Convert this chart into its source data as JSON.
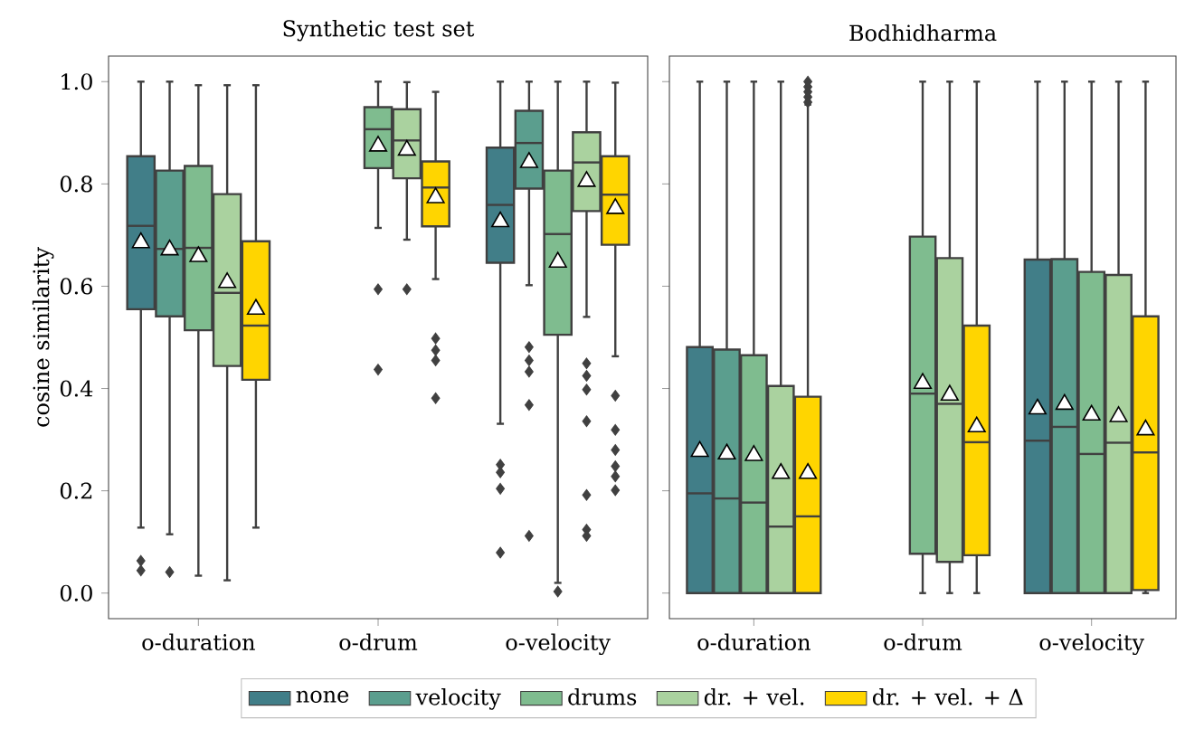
{
  "chart_data": [
    {
      "type": "box",
      "title": "Synthetic test set",
      "ylabel": "cosine similarity",
      "categories": [
        "o-duration",
        "o-drum",
        "o-velocity"
      ],
      "ylim": [
        -0.05,
        1.05
      ],
      "yticks": [
        {
          "value": 0,
          "label": "0.0"
        },
        {
          "value": 0.2,
          "label": "0.2"
        },
        {
          "value": 0.4,
          "label": "0.4"
        },
        {
          "value": 0.6,
          "label": "0.6"
        },
        {
          "value": 0.8,
          "label": "0.8"
        },
        {
          "value": 1.0,
          "label": "1.0"
        }
      ],
      "legend": "bottom",
      "series": [
        {
          "name": "none",
          "color": "#417e88",
          "boxes": [
            {
              "low": 0.128,
              "q1": 0.555,
              "median": 0.718,
              "q3": 0.854,
              "high": 1.0,
              "mean": 0.685,
              "outliers": [
                0.063,
                0.044
              ]
            },
            null,
            {
              "low": 0.331,
              "q1": 0.646,
              "median": 0.759,
              "q3": 0.871,
              "high": 1.0,
              "mean": 0.726,
              "outliers": [
                0.251,
                0.236,
                0.204,
                0.079
              ]
            }
          ]
        },
        {
          "name": "velocity",
          "color": "#5b9e8e",
          "boxes": [
            {
              "low": 0.115,
              "q1": 0.541,
              "median": 0.673,
              "q3": 0.826,
              "high": 1.0,
              "mean": 0.671,
              "outliers": [
                0.041
              ]
            },
            null,
            {
              "low": 0.602,
              "q1": 0.791,
              "median": 0.88,
              "q3": 0.943,
              "high": 1.0,
              "mean": 0.842,
              "outliers": [
                0.481,
                0.455,
                0.433,
                0.368,
                0.112
              ]
            }
          ]
        },
        {
          "name": "drums",
          "color": "#7fbc8f",
          "boxes": [
            {
              "low": 0.034,
              "q1": 0.514,
              "median": 0.675,
              "q3": 0.835,
              "high": 0.993,
              "mean": 0.658
            },
            {
              "low": 0.714,
              "q1": 0.831,
              "median": 0.907,
              "q3": 0.95,
              "high": 1.0,
              "mean": 0.874,
              "outliers": [
                0.594,
                0.437
              ]
            },
            {
              "low": 0.02,
              "q1": 0.505,
              "median": 0.702,
              "q3": 0.826,
              "high": 1.0,
              "mean": 0.647,
              "outliers": [
                0.003
              ]
            }
          ]
        },
        {
          "name": "dr. + vel.",
          "color": "#aad29f",
          "boxes": [
            {
              "low": 0.025,
              "q1": 0.444,
              "median": 0.587,
              "q3": 0.78,
              "high": 0.993,
              "mean": 0.607
            },
            {
              "low": 0.691,
              "q1": 0.811,
              "median": 0.885,
              "q3": 0.946,
              "high": 0.999,
              "mean": 0.866,
              "outliers": [
                0.594
              ]
            },
            {
              "low": 0.54,
              "q1": 0.747,
              "median": 0.842,
              "q3": 0.901,
              "high": 1.0,
              "mean": 0.805,
              "outliers": [
                0.449,
                0.425,
                0.398,
                0.336,
                0.192,
                0.124,
                0.112
              ]
            }
          ]
        },
        {
          "name": "dr. + vel. + Δ",
          "color": "#ffd500",
          "boxes": [
            {
              "low": 0.128,
              "q1": 0.417,
              "median": 0.523,
              "q3": 0.688,
              "high": 0.993,
              "mean": 0.555
            },
            {
              "low": 0.614,
              "q1": 0.717,
              "median": 0.793,
              "q3": 0.844,
              "high": 0.98,
              "mean": 0.773,
              "outliers": [
                0.498,
                0.475,
                0.455,
                0.381
              ]
            },
            {
              "low": 0.463,
              "q1": 0.681,
              "median": 0.779,
              "q3": 0.854,
              "high": 0.998,
              "mean": 0.752,
              "outliers": [
                0.386,
                0.319,
                0.28,
                0.248,
                0.228,
                0.201
              ]
            }
          ]
        }
      ]
    },
    {
      "type": "box",
      "title": "Bodhidharma",
      "categories": [
        "o-duration",
        "o-drum",
        "o-velocity"
      ],
      "ylim": [
        -0.05,
        1.05
      ],
      "yticks": [
        {
          "value": 0,
          "label": null
        },
        {
          "value": 0.2,
          "label": null
        },
        {
          "value": 0.4,
          "label": null
        },
        {
          "value": 0.6,
          "label": null
        },
        {
          "value": 0.8,
          "label": null
        },
        {
          "value": 1.0,
          "label": null
        }
      ],
      "tick_labels": "x",
      "series": [
        {
          "color": "#417e88",
          "boxes": [
            {
              "low": 0.0,
              "q1": 0.0,
              "median": 0.195,
              "q3": 0.481,
              "high": 1.0,
              "mean": 0.277
            },
            null,
            {
              "low": 0.0,
              "q1": 0.0,
              "median": 0.298,
              "q3": 0.652,
              "high": 1.0,
              "mean": 0.36
            }
          ]
        },
        {
          "color": "#5b9e8e",
          "boxes": [
            {
              "low": 0.0,
              "q1": 0.0,
              "median": 0.185,
              "q3": 0.476,
              "high": 1.0,
              "mean": 0.272
            },
            null,
            {
              "low": 0.0,
              "q1": 0.0,
              "median": 0.325,
              "q3": 0.653,
              "high": 1.0,
              "mean": 0.369
            }
          ]
        },
        {
          "color": "#7fbc8f",
          "boxes": [
            {
              "low": 0.0,
              "q1": 0.0,
              "median": 0.177,
              "q3": 0.465,
              "high": 1.0,
              "mean": 0.269
            },
            {
              "low": 0.0,
              "q1": 0.077,
              "median": 0.39,
              "q3": 0.697,
              "high": 1.0,
              "mean": 0.41
            },
            {
              "low": 0.0,
              "q1": 0.0,
              "median": 0.272,
              "q3": 0.628,
              "high": 1.0,
              "mean": 0.348
            }
          ]
        },
        {
          "color": "#aad29f",
          "boxes": [
            {
              "low": 0.0,
              "q1": 0.0,
              "median": 0.13,
              "q3": 0.405,
              "high": 1.0,
              "mean": 0.234
            },
            {
              "low": 0.0,
              "q1": 0.061,
              "median": 0.37,
              "q3": 0.655,
              "high": 1.0,
              "mean": 0.387
            },
            {
              "low": 0.0,
              "q1": 0.0,
              "median": 0.294,
              "q3": 0.622,
              "high": 1.0,
              "mean": 0.345
            }
          ]
        },
        {
          "color": "#ffd500",
          "boxes": [
            {
              "low": 0.0,
              "q1": 0.0,
              "median": 0.15,
              "q3": 0.384,
              "high": 0.955,
              "mean": 0.234,
              "outliers": [
                0.96,
                0.97,
                0.98,
                0.99,
                1.0
              ]
            },
            {
              "low": 0.0,
              "q1": 0.074,
              "median": 0.295,
              "q3": 0.523,
              "high": 1.0,
              "mean": 0.325
            },
            {
              "low": 0.0,
              "q1": 0.006,
              "median": 0.275,
              "q3": 0.541,
              "high": 1.0,
              "mean": 0.319
            }
          ]
        }
      ]
    }
  ]
}
